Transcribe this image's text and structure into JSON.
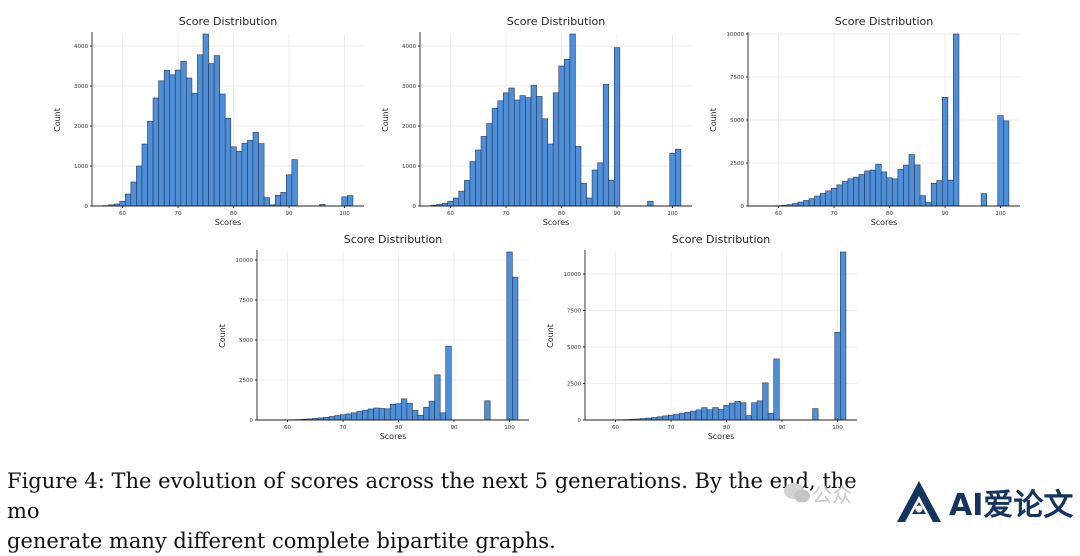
{
  "chart_data": [
    {
      "type": "bar",
      "title": "Score Distribution",
      "xlabel": "Scores",
      "ylabel": "Count",
      "xlim": [
        54.5,
        103.5
      ],
      "ylim": [
        0,
        4300
      ],
      "xticks": [
        60,
        70,
        80,
        90,
        100
      ],
      "yticks": [
        0,
        1000,
        2000,
        3000,
        4000
      ],
      "grid": true,
      "bin_width": 1,
      "bin_centers": [
        57,
        58,
        59,
        60,
        61,
        62,
        63,
        64,
        65,
        66,
        67,
        68,
        69,
        70,
        71,
        72,
        73,
        74,
        75,
        76,
        77,
        78,
        79,
        80,
        81,
        82,
        83,
        84,
        85,
        86,
        87,
        88,
        89,
        90,
        91,
        92,
        93,
        94,
        95,
        96,
        97,
        98,
        99,
        100,
        101
      ],
      "values": [
        10,
        30,
        50,
        120,
        300,
        600,
        1000,
        1550,
        2120,
        2700,
        3130,
        3390,
        3280,
        3400,
        3620,
        3200,
        2820,
        3780,
        4300,
        3560,
        3760,
        2800,
        2190,
        1480,
        1370,
        1570,
        1640,
        1840,
        1560,
        210,
        30,
        270,
        340,
        780,
        1160,
        0,
        0,
        0,
        0,
        40,
        0,
        0,
        0,
        230,
        260
      ]
    },
    {
      "type": "bar",
      "title": "Score Distribution",
      "xlabel": "Scores",
      "ylabel": "Count",
      "xlim": [
        54.5,
        103.5
      ],
      "ylim": [
        0,
        4300
      ],
      "xticks": [
        60,
        70,
        80,
        90,
        100
      ],
      "yticks": [
        0,
        1000,
        2000,
        3000,
        4000
      ],
      "grid": true,
      "bin_width": 1,
      "bin_centers": [
        56,
        57,
        58,
        59,
        60,
        61,
        62,
        63,
        64,
        65,
        66,
        67,
        68,
        69,
        70,
        71,
        72,
        73,
        74,
        75,
        76,
        77,
        78,
        79,
        80,
        81,
        82,
        83,
        84,
        85,
        86,
        87,
        88,
        89,
        90,
        91,
        92,
        93,
        94,
        95,
        96,
        97,
        98,
        99,
        100,
        101
      ],
      "values": [
        5,
        20,
        40,
        70,
        120,
        200,
        370,
        640,
        1110,
        1400,
        1740,
        2060,
        2440,
        2630,
        2830,
        2950,
        2650,
        2760,
        2710,
        3020,
        2740,
        2180,
        1550,
        2830,
        3500,
        3670,
        4300,
        1490,
        570,
        200,
        900,
        1080,
        3040,
        640,
        3960,
        0,
        0,
        0,
        0,
        0,
        120,
        0,
        0,
        0,
        1320,
        1420
      ]
    },
    {
      "type": "bar",
      "title": "Score Distribution",
      "xlabel": "Scores",
      "ylabel": "Count",
      "xlim": [
        54.5,
        103.5
      ],
      "ylim": [
        0,
        10000
      ],
      "xticks": [
        60,
        70,
        80,
        90,
        100
      ],
      "yticks": [
        0,
        2500,
        5000,
        7500,
        10000
      ],
      "grid": true,
      "bin_width": 1,
      "bin_centers": [
        60,
        61,
        62,
        63,
        64,
        65,
        66,
        67,
        68,
        69,
        70,
        71,
        72,
        73,
        74,
        75,
        76,
        77,
        78,
        79,
        80,
        81,
        82,
        83,
        84,
        85,
        86,
        87,
        88,
        89,
        90,
        91,
        92,
        93,
        94,
        95,
        96,
        97,
        98,
        99,
        100,
        101
      ],
      "values": [
        20,
        40,
        80,
        140,
        230,
        320,
        430,
        580,
        730,
        880,
        1030,
        1230,
        1430,
        1580,
        1680,
        1830,
        2040,
        2090,
        2430,
        1980,
        1640,
        1580,
        2140,
        2380,
        2990,
        2390,
        600,
        200,
        1320,
        1480,
        6320,
        1500,
        10000,
        0,
        0,
        0,
        0,
        720,
        0,
        0,
        5250,
        4950
      ]
    },
    {
      "type": "bar",
      "title": "Score Distribution",
      "xlabel": "Scores",
      "ylabel": "Count",
      "xlim": [
        54.5,
        103.5
      ],
      "ylim": [
        0,
        10500
      ],
      "xticks": [
        60,
        70,
        80,
        90,
        100
      ],
      "yticks": [
        0,
        2500,
        5000,
        7500,
        10000
      ],
      "grid": true,
      "bin_width": 1,
      "bin_centers": [
        60,
        61,
        62,
        63,
        64,
        65,
        66,
        67,
        68,
        69,
        70,
        71,
        72,
        73,
        74,
        75,
        76,
        77,
        78,
        79,
        80,
        81,
        82,
        83,
        84,
        85,
        86,
        87,
        88,
        89,
        90,
        91,
        92,
        93,
        94,
        95,
        96,
        97,
        98,
        99,
        100,
        101
      ],
      "values": [
        10,
        20,
        30,
        50,
        70,
        100,
        130,
        170,
        220,
        280,
        330,
        380,
        450,
        530,
        610,
        690,
        750,
        720,
        700,
        980,
        1020,
        1320,
        1050,
        600,
        300,
        790,
        1180,
        2820,
        450,
        4620,
        0,
        0,
        0,
        0,
        0,
        0,
        1200,
        0,
        0,
        0,
        10500,
        8930
      ]
    },
    {
      "type": "bar",
      "title": "Score Distribution",
      "xlabel": "Scores",
      "ylabel": "Count",
      "xlim": [
        54.5,
        103.5
      ],
      "ylim": [
        0,
        11500
      ],
      "xticks": [
        60,
        70,
        80,
        90,
        100
      ],
      "yticks": [
        0,
        2500,
        5000,
        7500,
        10000
      ],
      "grid": true,
      "bin_width": 1,
      "bin_centers": [
        60,
        61,
        62,
        63,
        64,
        65,
        66,
        67,
        68,
        69,
        70,
        71,
        72,
        73,
        74,
        75,
        76,
        77,
        78,
        79,
        80,
        81,
        82,
        83,
        84,
        85,
        86,
        87,
        88,
        89,
        90,
        91,
        92,
        93,
        94,
        95,
        96,
        97,
        98,
        99,
        100,
        101
      ],
      "values": [
        10,
        20,
        30,
        50,
        70,
        100,
        130,
        170,
        220,
        280,
        330,
        380,
        450,
        530,
        610,
        690,
        850,
        700,
        850,
        720,
        1000,
        1150,
        1280,
        1180,
        300,
        1180,
        1310,
        2540,
        450,
        4180,
        0,
        0,
        0,
        0,
        0,
        0,
        780,
        0,
        0,
        0,
        6000,
        11500
      ]
    }
  ],
  "caption": {
    "line1": "Figure 4: The evolution of scores across the next 5 generations. By the end, the mo",
    "line2": "generate many different complete bipartite graphs."
  },
  "watermark": {
    "text": "公众",
    "logo_text": "AI爱论文",
    "logo_color": "#14335e"
  }
}
